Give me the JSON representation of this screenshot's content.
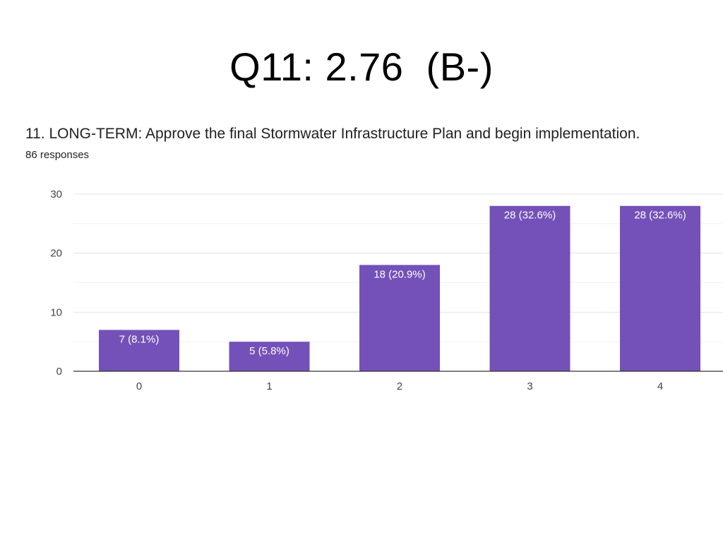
{
  "slide": {
    "title": "Q11: 2.76  (B-)"
  },
  "question": {
    "text": "11. LONG-TERM: Approve the final Stormwater Infrastructure Plan and begin implementation.",
    "responses": "86 responses"
  },
  "colors": {
    "bar": "#7451b8",
    "grid": "#ececec",
    "axis": "#333333"
  },
  "chart_data": {
    "type": "bar",
    "categories": [
      "0",
      "1",
      "2",
      "3",
      "4"
    ],
    "values": [
      7,
      5,
      18,
      28,
      28
    ],
    "data_labels": [
      "7 (8.1%)",
      "5 (5.8%)",
      "18 (20.9%)",
      "28 (32.6%)",
      "28 (32.6%)"
    ],
    "ylim": [
      0,
      30
    ],
    "yticks": [
      "0",
      "10",
      "20",
      "30"
    ],
    "grid": true,
    "legend": "none",
    "xlabel": "",
    "ylabel": ""
  }
}
